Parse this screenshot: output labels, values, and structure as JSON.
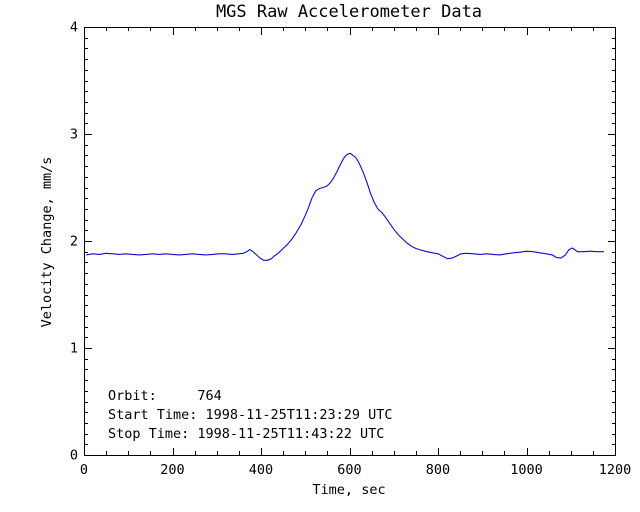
{
  "window": {
    "background": "#ffffff",
    "axis_color": "#000000",
    "text_color": "#000000"
  },
  "chart_data": {
    "type": "line",
    "title": "MGS Raw Accelerometer Data",
    "xlabel": "Time, sec",
    "ylabel": "Velocity Change, mm/s",
    "xlim": [
      0,
      1200
    ],
    "ylim": [
      0,
      4
    ],
    "xticks": [
      0,
      200,
      400,
      600,
      800,
      1000,
      1200
    ],
    "yticks": [
      0,
      1,
      2,
      3,
      4
    ],
    "x_minor_interval": 50,
    "y_minor_interval": 0.1,
    "grid": false,
    "legend": "none",
    "line_color": "#0d0dcc",
    "series": [
      {
        "name": "velocity-change",
        "x": [
          5,
          20,
          35,
          50,
          65,
          80,
          95,
          110,
          125,
          140,
          155,
          170,
          185,
          200,
          215,
          230,
          245,
          260,
          275,
          290,
          305,
          320,
          335,
          350,
          360,
          368,
          375,
          382,
          390,
          398,
          406,
          414,
          422,
          430,
          440,
          450,
          460,
          470,
          480,
          490,
          500,
          508,
          516,
          524,
          532,
          540,
          548,
          556,
          564,
          572,
          580,
          588,
          595,
          602,
          608,
          614,
          620,
          626,
          632,
          640,
          648,
          656,
          664,
          672,
          680,
          690,
          700,
          710,
          720,
          730,
          740,
          750,
          762,
          775,
          788,
          800,
          812,
          822,
          832,
          842,
          852,
          865,
          880,
          895,
          910,
          925,
          940,
          955,
          970,
          985,
          1000,
          1015,
          1030,
          1045,
          1058,
          1068,
          1078,
          1088,
          1096,
          1104,
          1115,
          1130,
          1145,
          1160,
          1175
        ],
        "y": [
          1.87,
          1.88,
          1.875,
          1.885,
          1.88,
          1.875,
          1.88,
          1.875,
          1.87,
          1.875,
          1.88,
          1.875,
          1.88,
          1.875,
          1.87,
          1.875,
          1.88,
          1.875,
          1.87,
          1.875,
          1.88,
          1.88,
          1.875,
          1.88,
          1.885,
          1.9,
          1.92,
          1.9,
          1.87,
          1.84,
          1.82,
          1.82,
          1.83,
          1.86,
          1.89,
          1.93,
          1.97,
          2.02,
          2.08,
          2.15,
          2.24,
          2.32,
          2.41,
          2.47,
          2.49,
          2.5,
          2.51,
          2.54,
          2.59,
          2.65,
          2.72,
          2.78,
          2.81,
          2.82,
          2.8,
          2.78,
          2.74,
          2.69,
          2.63,
          2.54,
          2.44,
          2.36,
          2.3,
          2.27,
          2.23,
          2.17,
          2.11,
          2.06,
          2.02,
          1.98,
          1.95,
          1.93,
          1.915,
          1.9,
          1.89,
          1.88,
          1.855,
          1.835,
          1.84,
          1.86,
          1.88,
          1.885,
          1.88,
          1.875,
          1.88,
          1.875,
          1.87,
          1.88,
          1.89,
          1.895,
          1.905,
          1.9,
          1.89,
          1.88,
          1.87,
          1.845,
          1.84,
          1.87,
          1.92,
          1.935,
          1.9,
          1.9,
          1.905,
          1.9,
          1.9
        ]
      }
    ],
    "annotations": {
      "orbit": "764",
      "start_time": "1998-11-25T11:23:29 UTC",
      "stop_time": "1998-11-25T11:43:22 UTC",
      "lines": [
        "Orbit:     764",
        "Start Time: 1998-11-25T11:23:29 UTC",
        "Stop Time: 1998-11-25T11:43:22 UTC"
      ]
    }
  }
}
